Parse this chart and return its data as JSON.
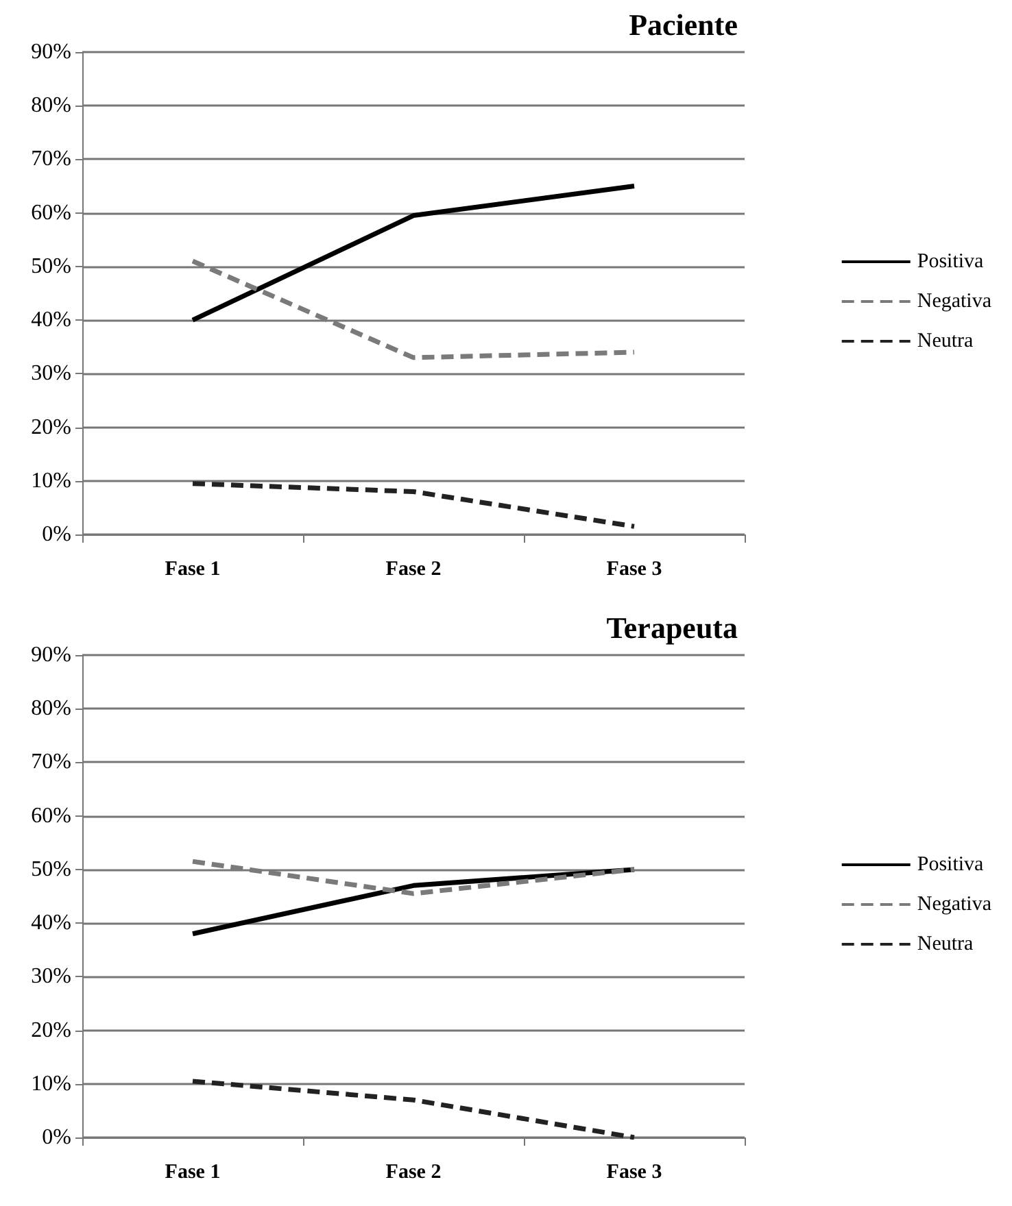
{
  "chart_data": [
    {
      "type": "line",
      "title": "Paciente",
      "categories": [
        "Fase 1",
        "Fase 2",
        "Fase 3"
      ],
      "series": [
        {
          "name": "Positiva",
          "color": "#000000",
          "line_style": "solid",
          "values": [
            40,
            59.5,
            65
          ]
        },
        {
          "name": "Negativa",
          "color": "#7a7a7a",
          "line_style": "dashed",
          "values": [
            51,
            33,
            34
          ]
        },
        {
          "name": "Neutra",
          "color": "#222222",
          "line_style": "dashed",
          "values": [
            9.5,
            8,
            1.5
          ]
        }
      ],
      "ylim": [
        0,
        90
      ],
      "yticks": [
        {
          "value": 0,
          "label": "0%"
        },
        {
          "value": 10,
          "label": "10%"
        },
        {
          "value": 20,
          "label": "20%"
        },
        {
          "value": 30,
          "label": "30%"
        },
        {
          "value": 40,
          "label": "40%"
        },
        {
          "value": 50,
          "label": "50%"
        },
        {
          "value": 60,
          "label": "60%"
        },
        {
          "value": 70,
          "label": "70%"
        },
        {
          "value": 80,
          "label": "80%"
        },
        {
          "value": 90,
          "label": "90%"
        }
      ],
      "grid": "y",
      "legend": "right",
      "marker": "none"
    },
    {
      "type": "line",
      "title": "Terapeuta",
      "categories": [
        "Fase 1",
        "Fase 2",
        "Fase 3"
      ],
      "series": [
        {
          "name": "Positiva",
          "color": "#000000",
          "line_style": "solid",
          "values": [
            38,
            47,
            50
          ]
        },
        {
          "name": "Negativa",
          "color": "#7a7a7a",
          "line_style": "dashed",
          "values": [
            51.5,
            45.5,
            50
          ]
        },
        {
          "name": "Neutra",
          "color": "#222222",
          "line_style": "dashed",
          "values": [
            10.5,
            7,
            0
          ]
        }
      ],
      "ylim": [
        0,
        90
      ],
      "yticks": [
        {
          "value": 0,
          "label": "0%"
        },
        {
          "value": 10,
          "label": "10%"
        },
        {
          "value": 20,
          "label": "20%"
        },
        {
          "value": 30,
          "label": "30%"
        },
        {
          "value": 40,
          "label": "40%"
        },
        {
          "value": 50,
          "label": "50%"
        },
        {
          "value": 60,
          "label": "60%"
        },
        {
          "value": 70,
          "label": "70%"
        },
        {
          "value": 80,
          "label": "80%"
        },
        {
          "value": 90,
          "label": "90%"
        }
      ],
      "grid": "y",
      "legend": "right",
      "marker": "none"
    }
  ]
}
